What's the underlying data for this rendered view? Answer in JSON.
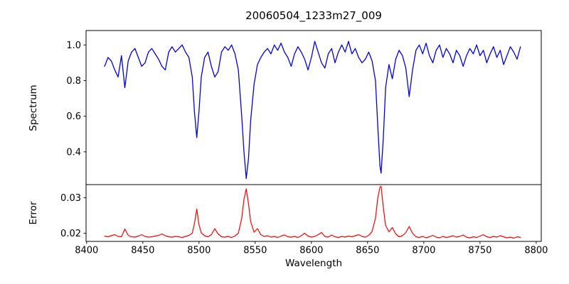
{
  "figure": {
    "title": "20060504_1233m27_009",
    "xlabel": "Wavelength",
    "ylabel_top": "Spectrum",
    "ylabel_bottom": "Error",
    "background_color": "#ffffff",
    "axis_color": "#000000"
  },
  "chart_data": {
    "type": "line",
    "title": "20060504_1233m27_009",
    "xlabel": "Wavelength",
    "grid": false,
    "legend": "none",
    "xlim": [
      8399.5,
      8804.5
    ],
    "xticks": {
      "values": [
        8400,
        8450,
        8500,
        8550,
        8600,
        8650,
        8700,
        8750,
        8800
      ],
      "labels": [
        "8400",
        "8450",
        "8500",
        "8550",
        "8600",
        "8650",
        "8700",
        "8750",
        "8800"
      ]
    },
    "panels": [
      {
        "name": "spectrum",
        "ylabel": "Spectrum",
        "ylim": [
          0.216,
          1.081
        ],
        "yticks": {
          "values": [
            0.4,
            0.6,
            0.8,
            1.0
          ],
          "labels": [
            "0.4",
            "0.6",
            "0.8",
            "1.0"
          ]
        }
      },
      {
        "name": "error",
        "ylabel": "Error",
        "ylim": [
          0.0177,
          0.0337
        ],
        "yticks": {
          "values": [
            0.02,
            0.03
          ],
          "labels": [
            "0.02",
            "0.03"
          ]
        }
      }
    ],
    "x": [
      8416,
      8419,
      8422,
      8425,
      8428,
      8431,
      8434,
      8437,
      8440,
      8443,
      8446,
      8449,
      8452,
      8455,
      8458,
      8461,
      8464,
      8467,
      8470,
      8473,
      8476,
      8479,
      8482,
      8485,
      8488,
      8491,
      8494,
      8496,
      8498,
      8500,
      8502,
      8505,
      8508,
      8511,
      8514,
      8517,
      8520,
      8523,
      8526,
      8529,
      8532,
      8535,
      8538,
      8540,
      8542,
      8544,
      8546,
      8549,
      8552,
      8555,
      8558,
      8561,
      8564,
      8567,
      8570,
      8573,
      8576,
      8579,
      8582,
      8585,
      8588,
      8591,
      8594,
      8597,
      8600,
      8603,
      8606,
      8609,
      8612,
      8615,
      8618,
      8621,
      8624,
      8627,
      8630,
      8633,
      8636,
      8639,
      8642,
      8645,
      8648,
      8651,
      8654,
      8657,
      8659,
      8661,
      8662,
      8664,
      8666,
      8669,
      8672,
      8675,
      8678,
      8681,
      8684,
      8687,
      8690,
      8693,
      8696,
      8699,
      8702,
      8705,
      8708,
      8711,
      8714,
      8717,
      8720,
      8723,
      8726,
      8729,
      8732,
      8735,
      8738,
      8741,
      8744,
      8747,
      8750,
      8753,
      8756,
      8759,
      8762,
      8765,
      8768,
      8771,
      8774,
      8777,
      8780,
      8783,
      8786
    ],
    "series": [
      {
        "name": "Spectrum",
        "panel": 0,
        "color": "#0000ee",
        "line_width": 1.3,
        "values": [
          0.88,
          0.93,
          0.91,
          0.86,
          0.82,
          0.94,
          0.76,
          0.91,
          0.96,
          0.98,
          0.93,
          0.88,
          0.9,
          0.96,
          0.98,
          0.95,
          0.92,
          0.88,
          0.86,
          0.96,
          0.99,
          0.96,
          0.98,
          1.0,
          0.96,
          0.93,
          0.82,
          0.62,
          0.48,
          0.63,
          0.82,
          0.93,
          0.96,
          0.88,
          0.82,
          0.85,
          0.96,
          0.99,
          0.97,
          1.0,
          0.95,
          0.86,
          0.6,
          0.4,
          0.25,
          0.36,
          0.58,
          0.78,
          0.89,
          0.93,
          0.96,
          0.98,
          0.95,
          1.0,
          0.97,
          1.01,
          0.96,
          0.93,
          0.88,
          0.95,
          0.99,
          0.96,
          0.92,
          0.86,
          0.93,
          1.02,
          0.96,
          0.9,
          0.87,
          0.95,
          0.98,
          0.9,
          0.96,
          1.0,
          0.96,
          1.02,
          0.95,
          0.98,
          0.93,
          0.9,
          0.92,
          0.96,
          0.91,
          0.8,
          0.55,
          0.32,
          0.28,
          0.48,
          0.76,
          0.89,
          0.81,
          0.92,
          0.97,
          0.94,
          0.87,
          0.71,
          0.86,
          0.97,
          1.0,
          0.95,
          1.01,
          0.94,
          0.9,
          0.97,
          1.0,
          0.93,
          0.98,
          0.95,
          0.9,
          0.97,
          0.94,
          0.88,
          0.94,
          0.98,
          0.95,
          1.0,
          0.94,
          0.97,
          0.9,
          0.95,
          0.99,
          0.93,
          0.97,
          0.89,
          0.94,
          0.99,
          0.96,
          0.92,
          0.99
        ]
      },
      {
        "name": "Error",
        "panel": 1,
        "color": "#ff0000",
        "line_width": 1.2,
        "values": [
          0.0192,
          0.019,
          0.0193,
          0.0196,
          0.0191,
          0.019,
          0.0212,
          0.0194,
          0.019,
          0.0189,
          0.0192,
          0.0196,
          0.0191,
          0.0189,
          0.019,
          0.0192,
          0.0194,
          0.0198,
          0.0193,
          0.019,
          0.0189,
          0.0191,
          0.019,
          0.0188,
          0.0191,
          0.0194,
          0.02,
          0.0228,
          0.0268,
          0.0224,
          0.0201,
          0.0193,
          0.019,
          0.0196,
          0.0213,
          0.0198,
          0.019,
          0.0189,
          0.0191,
          0.0188,
          0.0192,
          0.02,
          0.0242,
          0.0295,
          0.0325,
          0.0284,
          0.0232,
          0.0203,
          0.0213,
          0.0196,
          0.0191,
          0.0193,
          0.0189,
          0.0191,
          0.0188,
          0.0192,
          0.0195,
          0.019,
          0.0189,
          0.0191,
          0.0188,
          0.0193,
          0.02,
          0.0192,
          0.0189,
          0.0191,
          0.0196,
          0.0202,
          0.0191,
          0.0189,
          0.0195,
          0.019,
          0.0188,
          0.0191,
          0.0189,
          0.0192,
          0.019,
          0.0193,
          0.0196,
          0.0191,
          0.0189,
          0.0194,
          0.0205,
          0.0242,
          0.0298,
          0.033,
          0.0332,
          0.0272,
          0.0222,
          0.0204,
          0.0216,
          0.0198,
          0.019,
          0.0193,
          0.0202,
          0.0219,
          0.02,
          0.019,
          0.0188,
          0.0191,
          0.0187,
          0.019,
          0.0194,
          0.0189,
          0.0187,
          0.0191,
          0.0188,
          0.019,
          0.0193,
          0.0189,
          0.0191,
          0.0195,
          0.0189,
          0.0187,
          0.019,
          0.0188,
          0.0192,
          0.0196,
          0.019,
          0.0188,
          0.0191,
          0.0189,
          0.0193,
          0.019,
          0.0187,
          0.0189,
          0.0186,
          0.019,
          0.0188
        ]
      }
    ]
  }
}
